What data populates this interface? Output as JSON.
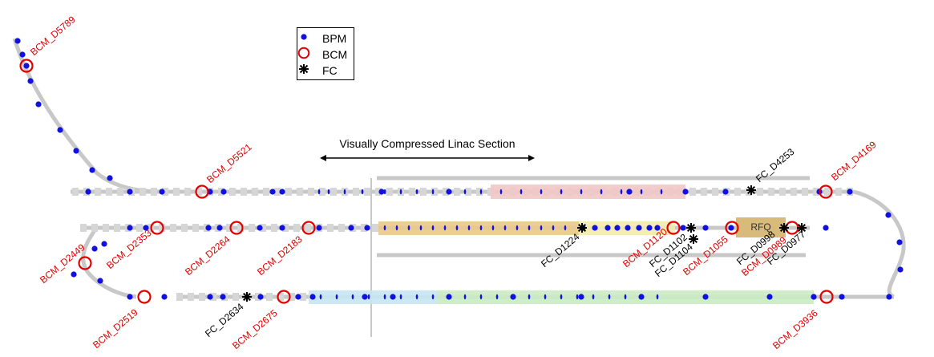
{
  "legend": {
    "bpm": "BPM",
    "bcm": "BCM",
    "fc": "FC"
  },
  "annotation": {
    "compressed_section": "Visually Compressed Linac Section"
  },
  "rfq_label": "RFQ",
  "colors": {
    "bpm": "#1010e0",
    "bcm": "#e00000",
    "fc": "#000000",
    "beamline": "#c8c8c8",
    "segment_pink": "#f2c6c6",
    "segment_orange": "#e9c98a",
    "segment_yellow": "#f4ebb0",
    "segment_blue": "#c7e7f2",
    "segment_green": "#c9ebc2",
    "rfq": "#d8ba7a"
  },
  "labels": {
    "bcm_d5789": "BCM_D5789",
    "bcm_d5521": "BCM_D5521",
    "bcm_d4169": "BCM_D4169",
    "fc_d4253": "FC_D4253",
    "bcm_d2353": "BCM_D2353",
    "bcm_d2264": "BCM_D2264",
    "bcm_d2183": "BCM_D2183",
    "bcm_d2449": "BCM_D2449",
    "fc_d1224": "FC_D1224",
    "bcm_d1120": "BCM_D1120",
    "fc_d1102": "FC_D1102",
    "fc_d1104": "FC_D1104",
    "bcm_d1055": "BCM_D1055",
    "fc_d0998": "FC_D0998",
    "bcm_d0989": "BCM_D0989",
    "fc_d0977": "FC_D0977",
    "bcm_d2519": "BCM_D2519",
    "fc_d2634": "FC_D2634",
    "bcm_d2675": "BCM_D2675",
    "bcm_d3936": "BCM_D3936"
  }
}
